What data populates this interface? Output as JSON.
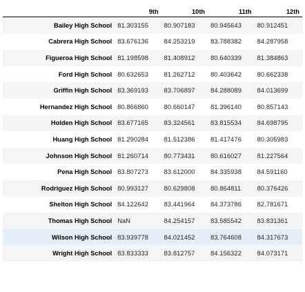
{
  "table": {
    "columns": [
      "9th",
      "10th",
      "11th",
      "12th"
    ],
    "rows": [
      {
        "school": "Bailey High School",
        "values": [
          "81.303155",
          "80.907183",
          "80.945643",
          "80.912451"
        ]
      },
      {
        "school": "Cabrera High School",
        "values": [
          "83.676136",
          "84.253219",
          "83.788382",
          "84.287958"
        ]
      },
      {
        "school": "Figueroa High School",
        "values": [
          "81.198598",
          "81.408912",
          "80.640339",
          "81.384863"
        ]
      },
      {
        "school": "Ford High School",
        "values": [
          "80.632653",
          "81.262712",
          "80.403642",
          "80.662338"
        ]
      },
      {
        "school": "Griffin High School",
        "values": [
          "83.369193",
          "83.706897",
          "84.288089",
          "84.013699"
        ]
      },
      {
        "school": "Hernandez High School",
        "values": [
          "80.866860",
          "80.660147",
          "81.396140",
          "80.857143"
        ]
      },
      {
        "school": "Holden High School",
        "values": [
          "83.677165",
          "83.324561",
          "83.815534",
          "84.698795"
        ]
      },
      {
        "school": "Huang High School",
        "values": [
          "81.290284",
          "81.512386",
          "81.417476",
          "80.305983"
        ]
      },
      {
        "school": "Johnson High School",
        "values": [
          "81.260714",
          "80.773431",
          "80.616027",
          "81.227564"
        ]
      },
      {
        "school": "Pena High School",
        "values": [
          "83.807273",
          "83.612000",
          "84.335938",
          "84.591160"
        ]
      },
      {
        "school": "Rodriguez High School",
        "values": [
          "80.993127",
          "80.629808",
          "80.864811",
          "80.376426"
        ]
      },
      {
        "school": "Shelton High School",
        "values": [
          "84.122642",
          "83.441964",
          "84.373786",
          "82.781671"
        ]
      },
      {
        "school": "Thomas High School",
        "values": [
          "NaN",
          "84.254157",
          "83.585542",
          "83.831361"
        ]
      },
      {
        "school": "Wilson High School",
        "values": [
          "83.939778",
          "84.021452",
          "83.764608",
          "84.317673"
        ]
      },
      {
        "school": "Wright High School",
        "values": [
          "83.833333",
          "83.812757",
          "84.156322",
          "84.073171"
        ]
      }
    ],
    "highlight_row": 13
  }
}
